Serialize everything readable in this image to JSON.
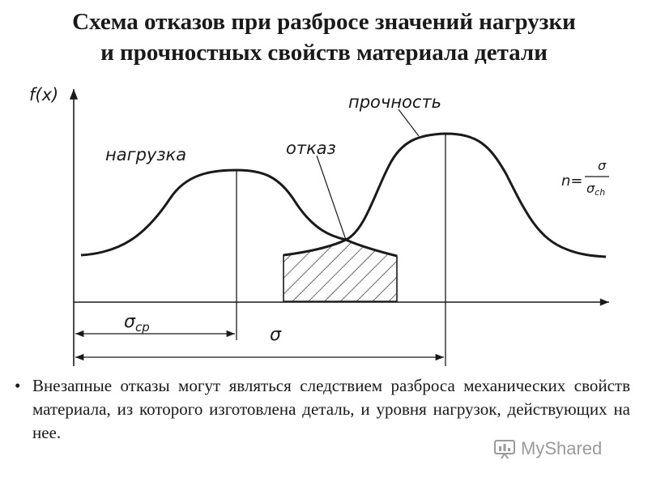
{
  "title": {
    "line1": "Схема отказов при разбросе значений нагрузки",
    "line2": "и прочностных свойств материала детали"
  },
  "diagram": {
    "y_axis_label": "f(x)",
    "load_label": "нагрузка",
    "strength_label": "прочность",
    "failure_label": "отказ",
    "sigma_mean_label": "σ",
    "sigma_mean_sub": "ср",
    "sigma_label": "σ",
    "formula": {
      "lhs": "n=",
      "numerator": "σ",
      "denominator": "σ",
      "denominator_sub": "ch"
    }
  },
  "bullet": {
    "mark": "•",
    "text": "Внезапные отказы могут являться следствием разброса механических свойств материала, из которого изготовлена деталь, и уровня нагрузок, действующих на нее."
  },
  "watermark": {
    "text": "MyShared",
    "icon": "myshared-logo-icon"
  }
}
